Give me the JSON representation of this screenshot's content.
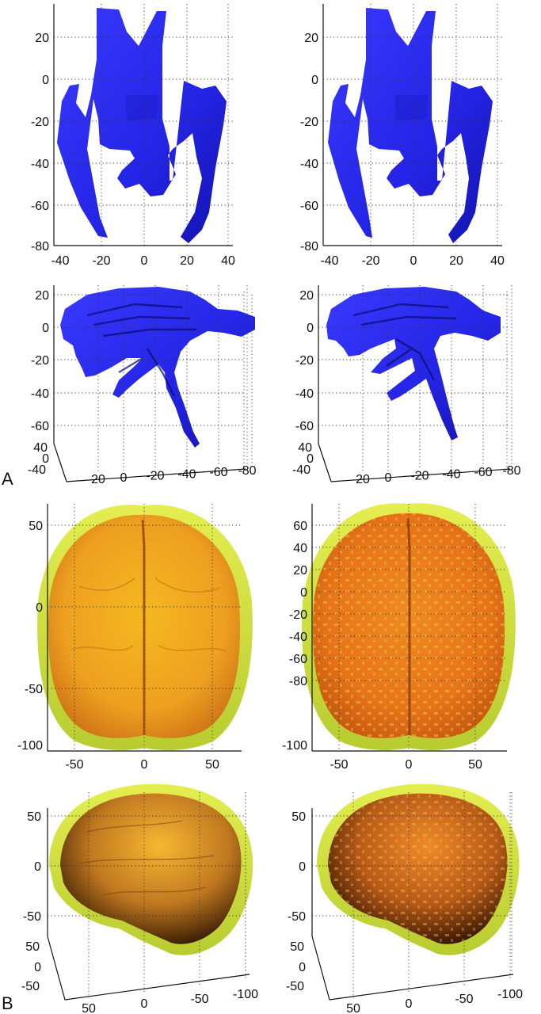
{
  "panel_labels": {
    "a": "A",
    "b": "B"
  },
  "colors": {
    "ventricle": "#2222ee",
    "ventricle_dark": "#0a0a70",
    "brain": "#f0a020",
    "brain_dark": "#c05010",
    "scalp": "#d8e840"
  },
  "ticks": {
    "a_top_y": [
      "20",
      "0",
      "-20",
      "-40",
      "-60",
      "-80"
    ],
    "a_top_x": [
      "-40",
      "-20",
      "0",
      "20",
      "40"
    ],
    "a_side_z": [
      "20",
      "0",
      "-20",
      "-40",
      "-60"
    ],
    "a_side_y": [
      "40",
      "0",
      "-40"
    ],
    "a_side_x": [
      "20",
      "0",
      "-20",
      "-40",
      "-60",
      "-80"
    ],
    "b_top_left_y": [
      "50",
      "0",
      "-50",
      "-100"
    ],
    "b_top_right_y": [
      "60",
      "40",
      "20",
      "0",
      "-20",
      "-40",
      "-60",
      "-80",
      "-100"
    ],
    "b_top_x": [
      "-50",
      "0",
      "50"
    ],
    "b_side_z": [
      "50",
      "0",
      "-50"
    ],
    "b_side_y": [
      "50",
      "0",
      "-50"
    ],
    "b_side_x": [
      "50",
      "0",
      "-50",
      "-100"
    ]
  },
  "icons": [
    "ventricle-axial-render",
    "ventricle-sagittal-render",
    "brain-axial-render",
    "brain-sagittal-render"
  ]
}
